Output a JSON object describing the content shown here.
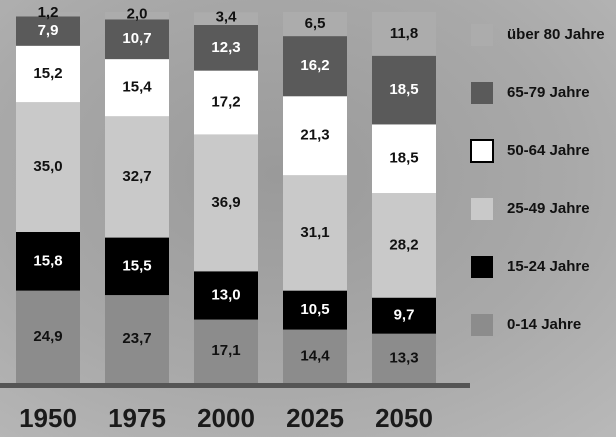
{
  "chart_data": {
    "type": "stacked-bar",
    "categories": [
      "1950",
      "1975",
      "2000",
      "2025",
      "2050"
    ],
    "ylim": [
      0,
      100
    ],
    "series": [
      {
        "name": "0-14 Jahre",
        "color": "#8c8c8c",
        "values": [
          24.9,
          23.7,
          17.1,
          14.4,
          13.3
        ],
        "value_labels": [
          "24,9",
          "23,7",
          "17,1",
          "14,4",
          "13,3"
        ]
      },
      {
        "name": "15-24 Jahre",
        "color": "#000000",
        "values": [
          15.8,
          15.5,
          13.0,
          10.5,
          9.7
        ],
        "value_labels": [
          "15,8",
          "15,5",
          "13,0",
          "10,5",
          "9,7"
        ]
      },
      {
        "name": "25-49 Jahre",
        "color": "#c9c9c9",
        "values": [
          35.0,
          32.7,
          36.9,
          31.1,
          28.2
        ],
        "value_labels": [
          "35,0",
          "32,7",
          "36,9",
          "31,1",
          "28,2"
        ]
      },
      {
        "name": "50-64 Jahre",
        "color": "#ffffff",
        "values": [
          15.2,
          15.4,
          17.2,
          21.3,
          18.5
        ],
        "value_labels": [
          "15,2",
          "15,4",
          "17,2",
          "21,3",
          "18,5"
        ]
      },
      {
        "name": "65-79 Jahre",
        "color": "#5a5a5a",
        "values": [
          7.9,
          10.7,
          12.3,
          16.2,
          18.5
        ],
        "value_labels": [
          "7,9",
          "10,7",
          "12,3",
          "16,2",
          "18,5"
        ]
      },
      {
        "name": "über 80 Jahre",
        "color": "#acacac",
        "values": [
          1.2,
          2.0,
          3.4,
          6.5,
          11.8
        ],
        "value_labels": [
          "1,2",
          "2,0",
          "3,4",
          "6,5",
          "11,8"
        ]
      }
    ]
  }
}
